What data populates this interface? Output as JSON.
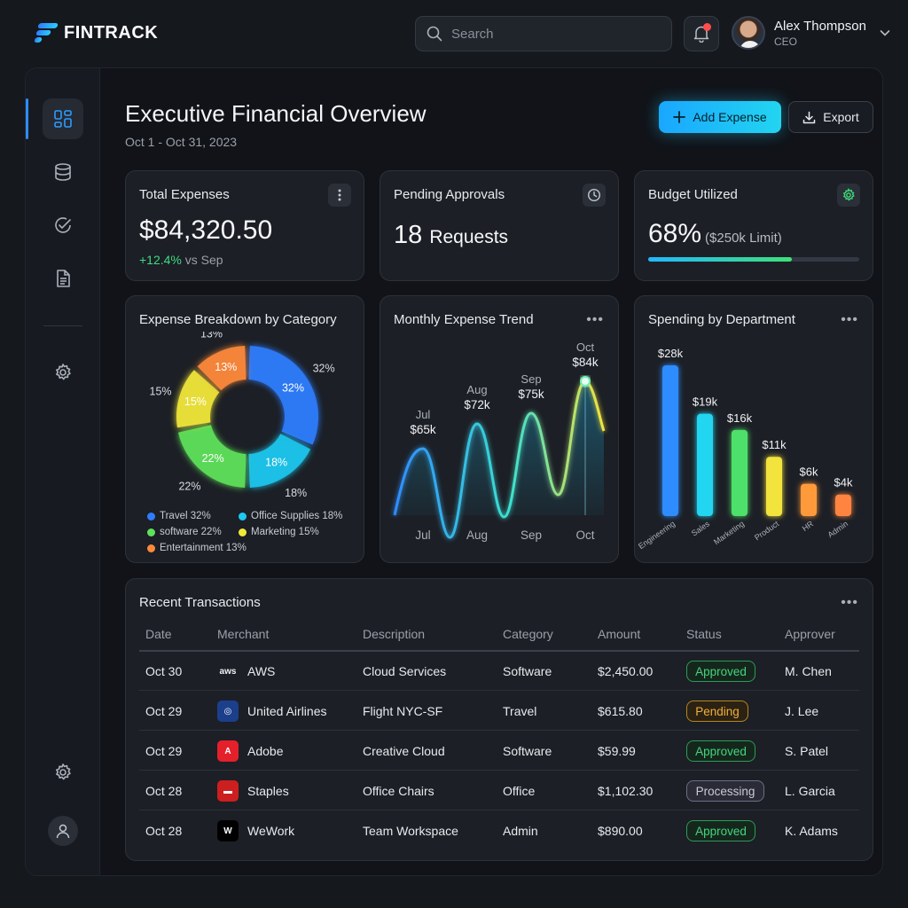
{
  "app": {
    "name": "FINTRACK"
  },
  "search": {
    "placeholder": "Search"
  },
  "user": {
    "name": "Alex Thompson",
    "role": "CEO"
  },
  "page": {
    "title": "Executive Financial Overview",
    "date_range": "Oct 1 - Oct 31, 2023",
    "add_label": "Add Expense",
    "export_label": "Export"
  },
  "kpis": {
    "total": {
      "title": "Total Expenses",
      "value": "$84,320.50",
      "delta": "+12.4%",
      "delta_suffix": "vs Sep"
    },
    "pending": {
      "title": "Pending Approvals",
      "value": "18",
      "unit": "Requests"
    },
    "budget": {
      "title": "Budget Utilized",
      "value": "68%",
      "limit": "($250k Limit)",
      "fraction": 0.68
    }
  },
  "breakdown": {
    "title": "Expense Breakdown by Category",
    "slices": [
      {
        "name": "Travel 32%",
        "label": "32%",
        "value": 32,
        "color": "#2f7dff"
      },
      {
        "name": "Office Supplies 18%",
        "label": "18%",
        "value": 18,
        "color": "#1fc8f0"
      },
      {
        "name": "software 22%",
        "label": "22%",
        "value": 22,
        "color": "#5ee25a"
      },
      {
        "name": "Marketing 15%",
        "label": "15%",
        "value": 15,
        "color": "#f2e83a"
      },
      {
        "name": "Entertainment 13%",
        "label": "13%",
        "value": 13,
        "color": "#ff8a3a"
      }
    ]
  },
  "trend": {
    "title": "Monthly Expense Trend",
    "points": [
      {
        "month": "Jul",
        "label": "$65k",
        "value": 65
      },
      {
        "month": "Aug",
        "label": "$72k",
        "value": 72
      },
      {
        "month": "Sep",
        "label": "$75k",
        "value": 75
      },
      {
        "month": "Oct",
        "label": "$84k",
        "value": 84
      }
    ]
  },
  "departments": {
    "title": "Spending by Department",
    "bars": [
      {
        "name": "Engineering",
        "label": "$28k",
        "value": 28,
        "color": "#2f8cff"
      },
      {
        "name": "Sales",
        "label": "$19k",
        "value": 19,
        "color": "#22d5f0"
      },
      {
        "name": "Marketing",
        "label": "$16k",
        "value": 16,
        "color": "#4ee06a"
      },
      {
        "name": "Product",
        "label": "$11k",
        "value": 11,
        "color": "#f3e33c"
      },
      {
        "name": "HR",
        "label": "$6k",
        "value": 6,
        "color": "#ff9a3a"
      },
      {
        "name": "Admin",
        "label": "$4k",
        "value": 4,
        "color": "#ff8440"
      }
    ]
  },
  "chart_data": [
    {
      "type": "pie",
      "title": "Expense Breakdown by Category",
      "categories": [
        "Travel",
        "Office Supplies",
        "software",
        "Marketing",
        "Entertainment"
      ],
      "values": [
        32,
        18,
        22,
        15,
        13
      ]
    },
    {
      "type": "line",
      "title": "Monthly Expense Trend",
      "x": [
        "Jul",
        "Aug",
        "Sep",
        "Oct"
      ],
      "values": [
        65,
        72,
        75,
        84
      ]
    },
    {
      "type": "bar",
      "title": "Spending by Department",
      "categories": [
        "Engineering",
        "Sales",
        "Marketing",
        "Product",
        "HR",
        "Admin"
      ],
      "values": [
        28,
        19,
        16,
        11,
        6,
        4
      ]
    }
  ],
  "transactions": {
    "title": "Recent Transactions",
    "headers": [
      "Date",
      "Merchant",
      "Description",
      "Category",
      "Amount",
      "Status",
      "Approver"
    ],
    "rows": [
      {
        "date": "Oct 30",
        "merchant": "AWS",
        "logo": "aws",
        "description": "Cloud Services",
        "category": "Software",
        "amount": "$2,450.00",
        "status": "Approved",
        "status_type": "approved",
        "approver": "M. Chen"
      },
      {
        "date": "Oct 29",
        "merchant": "United Airlines",
        "logo": "united",
        "description": "Flight NYC-SF",
        "category": "Travel",
        "amount": "$615.80",
        "status": "Pending",
        "status_type": "pending",
        "approver": "J. Lee"
      },
      {
        "date": "Oct 29",
        "merchant": "Adobe",
        "logo": "adobe",
        "description": "Creative Cloud",
        "category": "Software",
        "amount": "$59.99",
        "status": "Approved",
        "status_type": "approved",
        "approver": "S. Patel"
      },
      {
        "date": "Oct 28",
        "merchant": "Staples",
        "logo": "staples",
        "description": "Office Chairs",
        "category": "Office",
        "amount": "$1,102.30",
        "status": "Processing",
        "status_type": "processing",
        "approver": "L. Garcia"
      },
      {
        "date": "Oct 28",
        "merchant": "WeWork",
        "logo": "wework",
        "description": "Team Workspace",
        "category": "Admin",
        "amount": "$890.00",
        "status": "Approved",
        "status_type": "approved",
        "approver": "K. Adams"
      }
    ]
  }
}
